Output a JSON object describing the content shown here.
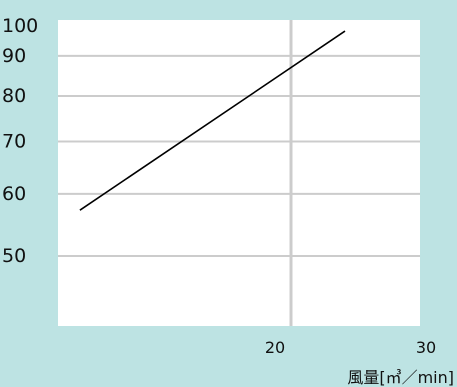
{
  "chart_data": {
    "type": "line",
    "title": "",
    "xlabel": "風量[㎥／min]",
    "ylabel": "",
    "x_scale": "log",
    "y_scale": "log",
    "xlim": [
      10,
      30
    ],
    "ylim": [
      40,
      100
    ],
    "x_ticks": [
      {
        "value": 20,
        "label": "20"
      },
      {
        "value": 30,
        "label": "30"
      }
    ],
    "y_ticks": [
      {
        "value": 100,
        "label": "100"
      },
      {
        "value": 90,
        "label": "90"
      },
      {
        "value": 80,
        "label": "80"
      },
      {
        "value": 70,
        "label": "70"
      },
      {
        "value": 60,
        "label": "60"
      },
      {
        "value": 50,
        "label": "50"
      }
    ],
    "series": [
      {
        "x": [
          10.3,
          23.7
        ],
        "y": [
          57.2,
          96.8
        ]
      }
    ],
    "grid": true,
    "legend": "none",
    "colors": {
      "background": "#bde3e3",
      "plot_area": "#ffffff",
      "grid": "#cccccc",
      "line": "#000000"
    }
  }
}
